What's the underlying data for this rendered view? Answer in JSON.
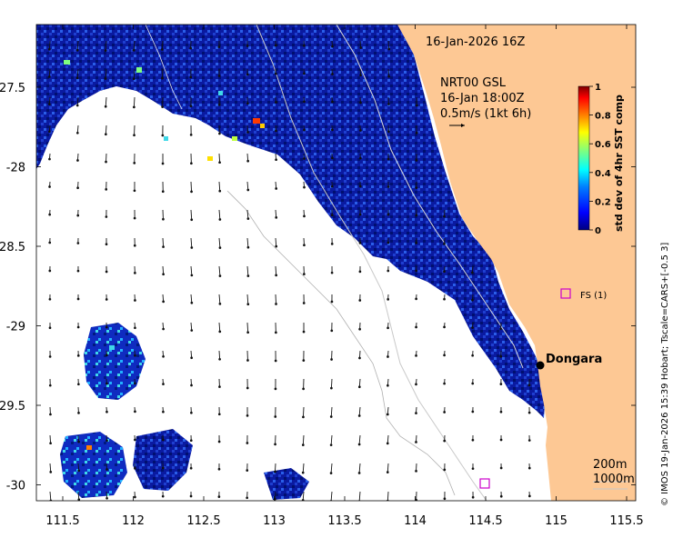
{
  "date_label": "16-Jan-2026 16Z",
  "wind": {
    "model": "NRT00 GSL",
    "time": "16-Jan 18:00Z",
    "scale_text": "0.5m/s (1kt 6h)"
  },
  "colorbar": {
    "title": "std dev of 4hr SST comp",
    "ticks": [
      "1",
      "0.8",
      "0.6",
      "0.4",
      "0.2",
      "0"
    ],
    "colors": [
      "#00007f",
      "#0000ff",
      "#007fff",
      "#00ffff",
      "#7fff7f",
      "#ffff00",
      "#ff7f00",
      "#ff0000",
      "#7f0000"
    ]
  },
  "x_ticks": [
    "111.5",
    "112",
    "112.5",
    "113",
    "113.5",
    "114",
    "114.5",
    "115",
    "115.5"
  ],
  "y_ticks": [
    "-27.5",
    "-28",
    "-28.5",
    "-29",
    "-29.5",
    "-30"
  ],
  "place": {
    "name": "Dongara"
  },
  "station": {
    "label": "FS (1)"
  },
  "contours": {
    "c200": "200m",
    "c1000": "1000m"
  },
  "credit": "© IMOS 19-Jan-2026 15:39 Hobart; Tscale=CARS+[-0.5 3]",
  "colors": {
    "land": "#fdc894",
    "ocean_data": "#0a1a9e",
    "marker": "#cc00cc"
  }
}
